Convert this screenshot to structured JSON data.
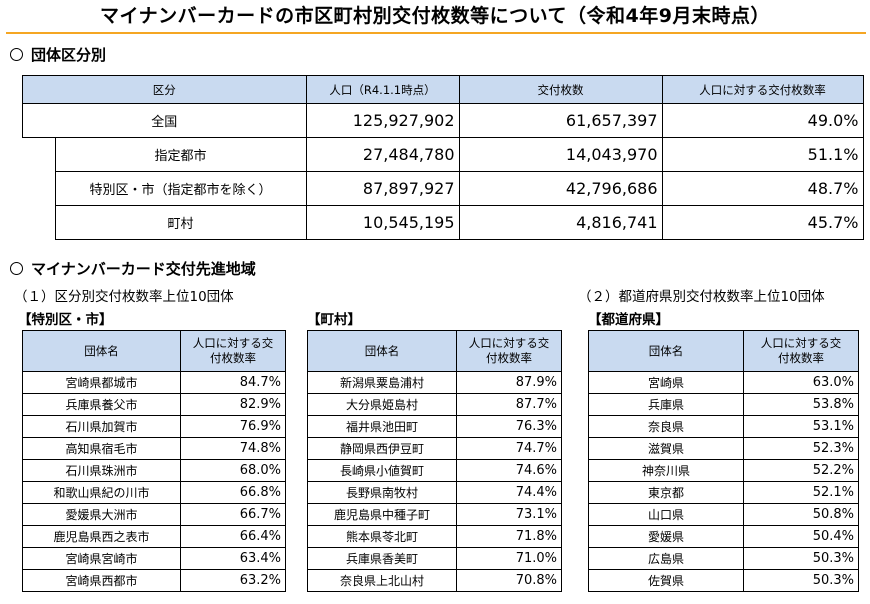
{
  "title": "マイナンバーカードの市区町村別交付枚数等について（令和4年9月末時点）",
  "section1": {
    "heading": "団体区分別",
    "headers": [
      "区分",
      "人口（R4.1.1時点）",
      "交付枚数",
      "人口に対する交付枚数率"
    ],
    "rows": [
      {
        "label": "全国",
        "population": "125,927,902",
        "issued": "61,657,397",
        "rate": "49.0%"
      },
      {
        "label": "指定都市",
        "population": "27,484,780",
        "issued": "14,043,970",
        "rate": "51.1%"
      },
      {
        "label": "特別区・市（指定都市を除く）",
        "population": "87,897,927",
        "issued": "42,796,686",
        "rate": "48.7%"
      },
      {
        "label": "町村",
        "population": "10,545,195",
        "issued": "4,816,741",
        "rate": "45.7%"
      }
    ]
  },
  "section2": {
    "heading": "マイナンバーカード交付先進地域",
    "sub1": "（１）区分別交付枚数率上位10団体",
    "sub2": "（２）都道府県別交付枚数率上位10団体",
    "col_name": "団体名",
    "col_rate": "人口に対する交付枚数率",
    "tables": [
      {
        "category": "【特別区・市】",
        "rows": [
          {
            "name": "宮崎県都城市",
            "rate": "84.7%"
          },
          {
            "name": "兵庫県養父市",
            "rate": "82.9%"
          },
          {
            "name": "石川県加賀市",
            "rate": "76.9%"
          },
          {
            "name": "高知県宿毛市",
            "rate": "74.8%"
          },
          {
            "name": "石川県珠洲市",
            "rate": "68.0%"
          },
          {
            "name": "和歌山県紀の川市",
            "rate": "66.8%"
          },
          {
            "name": "愛媛県大洲市",
            "rate": "66.7%"
          },
          {
            "name": "鹿児島県西之表市",
            "rate": "66.4%"
          },
          {
            "name": "宮崎県宮崎市",
            "rate": "63.4%"
          },
          {
            "name": "宮崎県西都市",
            "rate": "63.2%"
          }
        ]
      },
      {
        "category": "【町村】",
        "rows": [
          {
            "name": "新潟県粟島浦村",
            "rate": "87.9%"
          },
          {
            "name": "大分県姫島村",
            "rate": "87.7%"
          },
          {
            "name": "福井県池田町",
            "rate": "76.3%"
          },
          {
            "name": "静岡県西伊豆町",
            "rate": "74.7%"
          },
          {
            "name": "長崎県小値賀町",
            "rate": "74.6%"
          },
          {
            "name": "長野県南牧村",
            "rate": "74.4%"
          },
          {
            "name": "鹿児島県中種子町",
            "rate": "73.1%"
          },
          {
            "name": "熊本県苓北町",
            "rate": "71.8%"
          },
          {
            "name": "兵庫県香美町",
            "rate": "71.0%"
          },
          {
            "name": "奈良県上北山村",
            "rate": "70.8%"
          }
        ]
      },
      {
        "category": "【都道府県】",
        "rows": [
          {
            "name": "宮崎県",
            "rate": "63.0%"
          },
          {
            "name": "兵庫県",
            "rate": "53.8%"
          },
          {
            "name": "奈良県",
            "rate": "53.1%"
          },
          {
            "name": "滋賀県",
            "rate": "52.3%"
          },
          {
            "name": "神奈川県",
            "rate": "52.2%"
          },
          {
            "name": "東京都",
            "rate": "52.1%"
          },
          {
            "name": "山口県",
            "rate": "50.8%"
          },
          {
            "name": "愛媛県",
            "rate": "50.4%"
          },
          {
            "name": "広島県",
            "rate": "50.3%"
          },
          {
            "name": "佐賀県",
            "rate": "50.3%"
          }
        ]
      }
    ]
  }
}
